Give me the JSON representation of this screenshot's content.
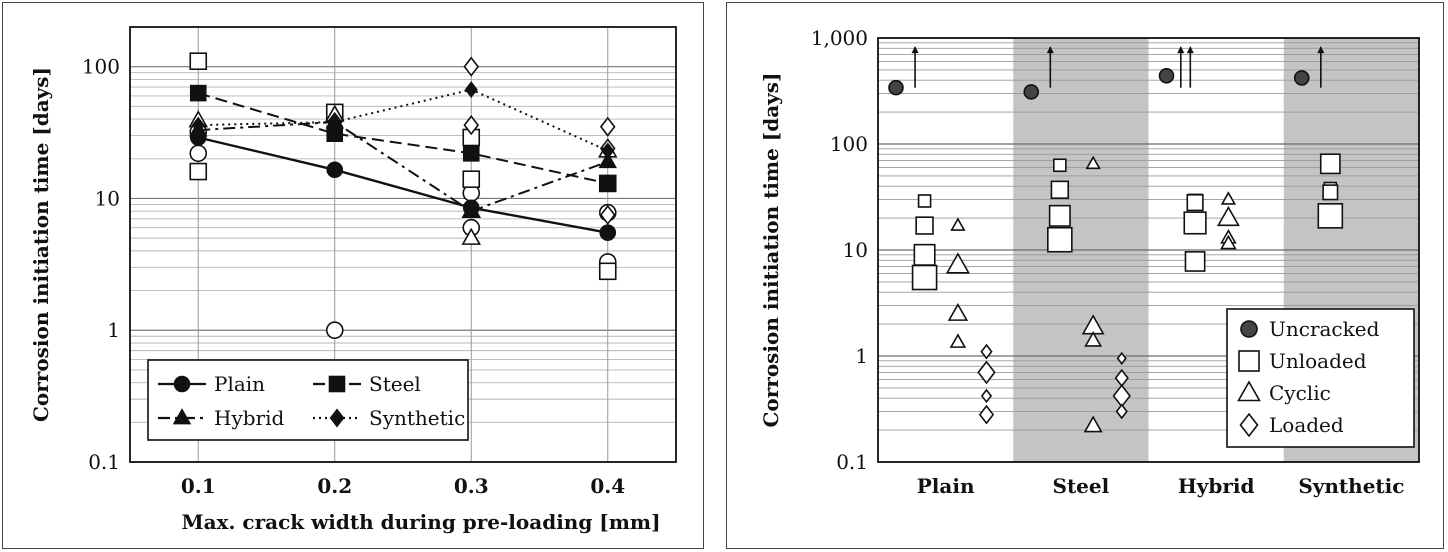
{
  "chart_data": [
    {
      "type": "line",
      "ylabel": "Corrosion initiation time [days]",
      "xlabel": "Max. crack width during pre-loading [mm]",
      "y_scale": "log",
      "ylim": [
        0.1,
        200
      ],
      "xlim": [
        0.05,
        0.45
      ],
      "x_ticks": [
        "0.1",
        "0.2",
        "0.3",
        "0.4"
      ],
      "y_ticks": [
        "0.1",
        "1",
        "10",
        "100"
      ],
      "grid": true,
      "legend_position": "bottom-left",
      "x": [
        0.1,
        0.2,
        0.3,
        0.4
      ],
      "series": [
        {
          "name": "Plain",
          "marker": "circle",
          "line": "solid",
          "values": [
            29,
            16.5,
            8.5,
            5.5
          ]
        },
        {
          "name": "Steel",
          "marker": "square",
          "line": "dashed",
          "values": [
            63,
            31,
            22,
            13
          ]
        },
        {
          "name": "Hybrid",
          "marker": "triangle",
          "line": "dashdot",
          "values": [
            33,
            38,
            8,
            19
          ]
        },
        {
          "name": "Synthetic",
          "marker": "diamond",
          "line": "dotted",
          "values": [
            36,
            38,
            67,
            23
          ]
        }
      ],
      "individual_points": [
        {
          "marker": "circle",
          "points": [
            [
              0.1,
              22
            ],
            [
              0.1,
              32
            ],
            [
              0.2,
              1
            ],
            [
              0.3,
              6
            ],
            [
              0.3,
              11
            ],
            [
              0.4,
              3.3
            ],
            [
              0.4,
              7.8
            ]
          ]
        },
        {
          "marker": "square",
          "points": [
            [
              0.1,
              110
            ],
            [
              0.1,
              16
            ],
            [
              0.2,
              45
            ],
            [
              0.3,
              29
            ],
            [
              0.3,
              14
            ],
            [
              0.4,
              2.8
            ],
            [
              0.4,
              13
            ]
          ]
        },
        {
          "marker": "triangle",
          "points": [
            [
              0.1,
              39
            ],
            [
              0.2,
              43
            ],
            [
              0.3,
              5
            ],
            [
              0.3,
              8
            ],
            [
              0.4,
              23
            ]
          ]
        },
        {
          "marker": "diamond",
          "points": [
            [
              0.1,
              30
            ],
            [
              0.2,
              38
            ],
            [
              0.3,
              100
            ],
            [
              0.3,
              36
            ],
            [
              0.4,
              35
            ],
            [
              0.4,
              24
            ],
            [
              0.4,
              7.5
            ]
          ]
        }
      ]
    },
    {
      "type": "scatter",
      "ylabel": "Corrosion initiation time [days]",
      "y_scale": "log",
      "ylim": [
        0.1,
        1000
      ],
      "y_ticks": [
        "0.1",
        "1",
        "10",
        "100",
        "1,000"
      ],
      "categories": [
        "Plain",
        "Steel",
        "Hybrid",
        "Synthetic"
      ],
      "shaded_categories": [
        "Steel",
        "Synthetic"
      ],
      "grid": true,
      "legend_position": "bottom-right",
      "series": [
        {
          "name": "Uncracked",
          "marker": "filled-circle",
          "offset": 0,
          "points": [
            [
              0,
              340
            ],
            [
              1,
              310
            ],
            [
              2,
              440
            ],
            [
              3,
              420
            ]
          ],
          "arrow_offsets": [
            [
              0,
              0.2
            ],
            [
              1,
              0.2
            ],
            [
              2,
              0.15
            ],
            [
              2,
              0.25
            ],
            [
              3,
              0.2
            ]
          ]
        },
        {
          "name": "Unloaded",
          "marker": "square",
          "offset": 0.3,
          "points": [
            [
              0,
              29,
              1
            ],
            [
              0,
              17,
              1.4
            ],
            [
              0,
              9,
              1.7
            ],
            [
              0,
              5.5,
              2.0
            ],
            [
              1,
              63,
              1
            ],
            [
              1,
              37,
              1.4
            ],
            [
              1,
              21,
              1.7
            ],
            [
              1,
              12.5,
              2.0
            ],
            [
              2,
              29,
              1.1
            ],
            [
              2,
              28,
              1.3
            ],
            [
              2,
              18,
              1.8
            ],
            [
              2,
              7.8,
              1.6
            ],
            [
              3,
              65,
              1.6
            ],
            [
              3,
              38,
              1.0
            ],
            [
              3,
              35,
              1.2
            ],
            [
              3,
              21,
              2.0
            ]
          ]
        },
        {
          "name": "Cyclic",
          "marker": "triangle",
          "offset": 0.65,
          "points": [
            [
              0,
              17,
              1
            ],
            [
              0,
              7.2,
              1.7
            ],
            [
              0,
              2.5,
              1.4
            ],
            [
              0,
              1.35,
              1.1
            ],
            [
              1,
              65,
              1
            ],
            [
              1,
              1.9,
              1.6
            ],
            [
              1,
              1.4,
              1.2
            ],
            [
              1,
              0.22,
              1.3
            ],
            [
              2,
              30,
              1
            ],
            [
              2,
              20,
              1.6
            ],
            [
              2,
              13,
              1.1
            ],
            [
              2,
              11.5,
              1.1
            ]
          ]
        },
        {
          "name": "Loaded",
          "marker": "diamond",
          "offset": 0.95,
          "points": [
            [
              0,
              1.1,
              1
            ],
            [
              0,
              0.7,
              1.6
            ],
            [
              0,
              0.42,
              0.9
            ],
            [
              0,
              0.28,
              1.3
            ],
            [
              1,
              0.95,
              0.8
            ],
            [
              1,
              0.62,
              1.2
            ],
            [
              1,
              0.42,
              1.6
            ],
            [
              1,
              0.3,
              1.0
            ]
          ]
        }
      ]
    }
  ]
}
